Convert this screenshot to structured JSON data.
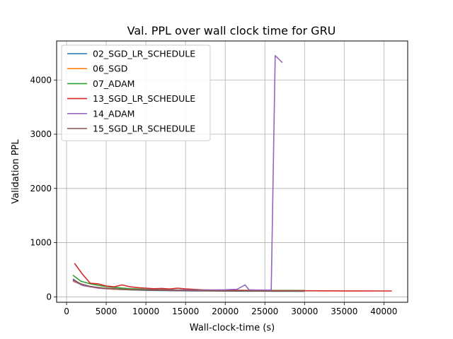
{
  "chart_data": {
    "type": "line",
    "title": "Val. PPL over wall clock time for GRU",
    "xlabel": "Wall-clock-time (s)",
    "ylabel": "Validation PPL",
    "xlim": [
      -1250,
      43000
    ],
    "ylim": [
      -100,
      4720
    ],
    "xticks": [
      0,
      5000,
      10000,
      15000,
      20000,
      25000,
      30000,
      35000,
      40000
    ],
    "yticks": [
      0,
      1000,
      2000,
      3000,
      4000
    ],
    "grid": true,
    "legend_position": "top-left",
    "series": [
      {
        "name": "02_SGD_LR_SCHEDULE",
        "color": "#1f77b4",
        "x": [
          800,
          1600,
          2500,
          3500,
          4500,
          6000,
          8000,
          10000,
          12000,
          14000,
          16000,
          18000,
          20000,
          22000,
          24000,
          26000,
          28000,
          30000
        ],
        "y": [
          330,
          250,
          205,
          175,
          155,
          140,
          128,
          120,
          115,
          112,
          110,
          108,
          106,
          105,
          104,
          103,
          103,
          102
        ]
      },
      {
        "name": "06_SGD",
        "color": "#ff7f0e",
        "x": [
          800,
          2000,
          4000,
          6000,
          8000,
          10000,
          12000,
          14000,
          16000,
          18000,
          20000,
          22000,
          24000,
          26000,
          28000,
          30000
        ],
        "y": [
          290,
          220,
          160,
          140,
          132,
          128,
          124,
          121,
          119,
          118,
          117,
          116,
          115,
          115,
          114,
          114
        ]
      },
      {
        "name": "07_ADAM",
        "color": "#2ca02c",
        "x": [
          800,
          1800,
          3000,
          4500,
          6000,
          8000,
          10000,
          12000,
          14000,
          16000,
          18000,
          20000,
          22000,
          24000,
          26000,
          28000,
          30000
        ],
        "y": [
          400,
          290,
          240,
          200,
          175,
          150,
          138,
          132,
          128,
          125,
          123,
          121,
          120,
          119,
          118,
          118,
          117
        ]
      },
      {
        "name": "13_SGD_LR_SCHEDULE",
        "color": "#d62728",
        "x": [
          1000,
          2000,
          3000,
          4000,
          5000,
          6000,
          7000,
          8000,
          9000,
          10000,
          11000,
          12000,
          13000,
          14000,
          15000,
          17000,
          20000,
          25000,
          30000,
          35000,
          41000
        ],
        "y": [
          620,
          420,
          250,
          240,
          200,
          185,
          220,
          185,
          170,
          160,
          150,
          155,
          145,
          160,
          148,
          130,
          120,
          115,
          112,
          110,
          108
        ]
      },
      {
        "name": "14_ADAM",
        "color": "#9467bd",
        "x": [
          800,
          2000,
          4000,
          6000,
          8000,
          10000,
          12000,
          14000,
          16000,
          18000,
          20000,
          21500,
          22500,
          23000,
          24000,
          25800,
          26300,
          27200
        ],
        "y": [
          300,
          210,
          160,
          145,
          135,
          130,
          128,
          126,
          125,
          125,
          130,
          140,
          220,
          130,
          125,
          125,
          4450,
          4320
        ]
      },
      {
        "name": "15_SGD_LR_SCHEDULE",
        "color": "#8c564b",
        "x": [
          800,
          1800,
          3000,
          4500,
          6000,
          8000,
          10000,
          12000,
          14000,
          16000,
          18000,
          20000,
          22000,
          24000,
          26000,
          28000,
          30000
        ],
        "y": [
          320,
          240,
          190,
          165,
          150,
          135,
          126,
          120,
          116,
          113,
          111,
          109,
          108,
          107,
          106,
          106,
          105
        ]
      }
    ]
  }
}
